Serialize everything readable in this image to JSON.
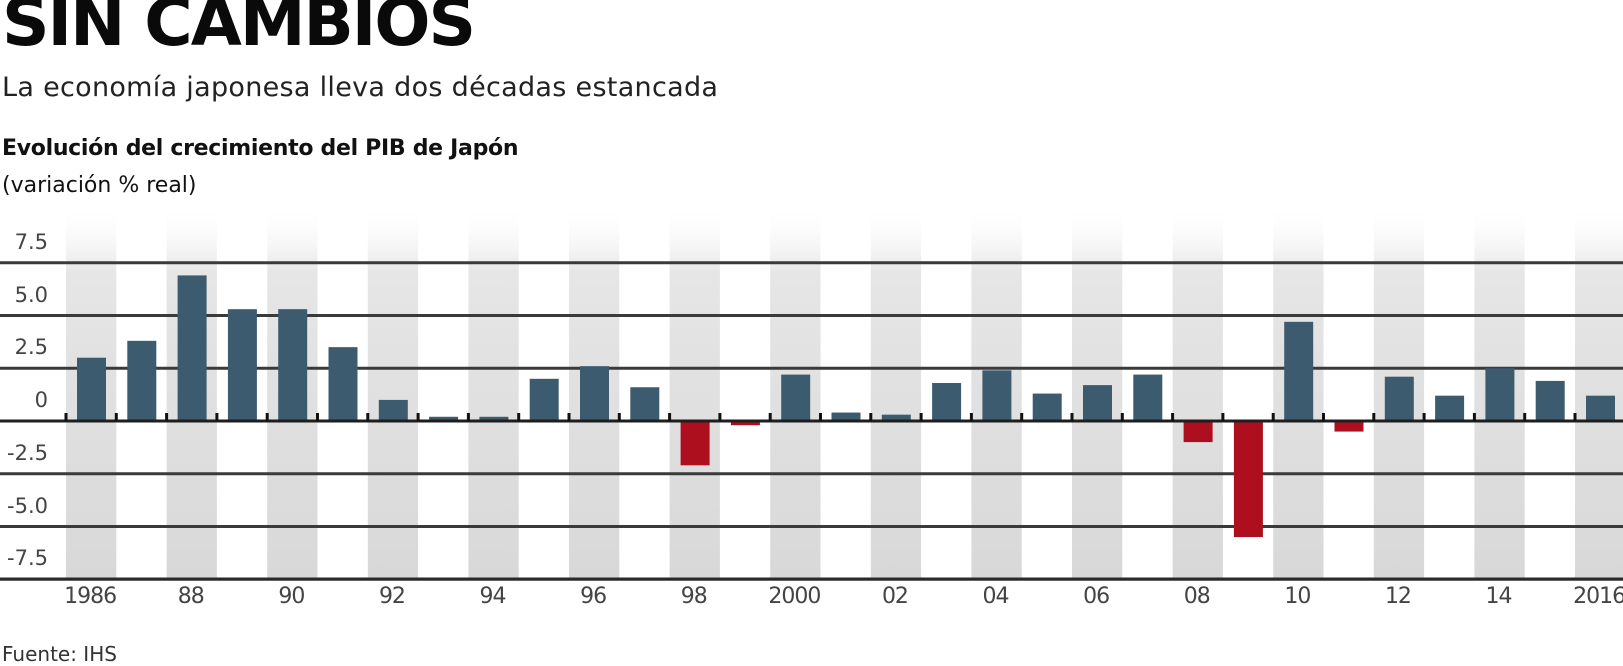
{
  "header": {
    "title": "SIN CAMBIOS",
    "subtitle": "La economía japonesa lleva dos décadas estancada"
  },
  "chart_header": {
    "title": "Evolución del crecimiento del PIB de Japón",
    "unit": "(variación % real)"
  },
  "footer": {
    "source": "Fuente: IHS"
  },
  "colors": {
    "positive": "#3d5b6f",
    "negative": "#ad0f1f",
    "gridline": "#3a3a3a",
    "band": "#dcdcdc"
  },
  "chart_data": {
    "type": "bar",
    "title": "Evolución del crecimiento del PIB de Japón",
    "subtitle": "(variación % real)",
    "xlabel": "",
    "ylabel": "variación % real",
    "ylim": [
      -7.5,
      7.5
    ],
    "yticks": [
      7.5,
      5.0,
      2.5,
      0,
      -2.5,
      -5.0,
      -7.5
    ],
    "ytick_labels": [
      "7.5",
      "5.0",
      "2.5",
      "0",
      "-2.5",
      "-5.0",
      "-7.5"
    ],
    "xtick_labels": [
      "1986",
      "88",
      "90",
      "92",
      "94",
      "96",
      "98",
      "2000",
      "02",
      "04",
      "06",
      "08",
      "10",
      "12",
      "14",
      "2016"
    ],
    "grid": true,
    "legend": null,
    "categories": [
      "1986",
      "1987",
      "1988",
      "1989",
      "1990",
      "1991",
      "1992",
      "1993",
      "1994",
      "1995",
      "1996",
      "1997",
      "1998",
      "1999",
      "2000",
      "2001",
      "2002",
      "2003",
      "2004",
      "2005",
      "2006",
      "2007",
      "2008",
      "2009",
      "2010",
      "2011",
      "2012",
      "2013",
      "2014",
      "2015",
      "2016"
    ],
    "values": [
      3.0,
      3.8,
      6.9,
      5.3,
      5.3,
      3.5,
      1.0,
      0.2,
      0.2,
      2.0,
      2.6,
      1.6,
      -2.1,
      -0.2,
      2.2,
      0.4,
      0.3,
      1.8,
      2.4,
      1.3,
      1.7,
      2.2,
      -1.0,
      -5.5,
      4.7,
      -0.5,
      2.1,
      1.2,
      2.5,
      1.9,
      1.2
    ],
    "annotations": [
      "Fuente: IHS"
    ]
  }
}
